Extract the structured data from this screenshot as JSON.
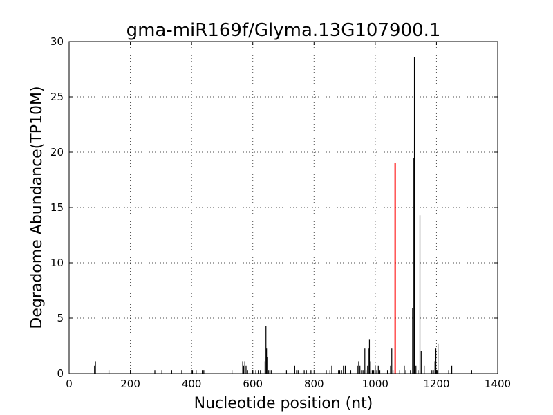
{
  "chart_data": {
    "type": "bar",
    "title": "gma-miR169f/Glyma.13G107900.1",
    "xlabel": "Nucleotide position (nt)",
    "ylabel": "Degradome Abundance(TP10M)",
    "xlim": [
      0,
      1400
    ],
    "ylim": [
      0,
      30
    ],
    "xticks": [
      0,
      200,
      400,
      600,
      800,
      1000,
      1200,
      1400
    ],
    "yticks": [
      0,
      5,
      10,
      15,
      20,
      25,
      30
    ],
    "grid": true,
    "colors": {
      "default": "#000000",
      "highlight": "#ff0000"
    },
    "series": [
      {
        "color": "#000000",
        "x": [
          83,
          86,
          130,
          280,
          303,
          335,
          368,
          403,
          415,
          435,
          440,
          532,
          567,
          570,
          574,
          578,
          583,
          600,
          610,
          618,
          625,
          640,
          643,
          645,
          648,
          652,
          660,
          710,
          737,
          743,
          748,
          768,
          775,
          790,
          840,
          852,
          858,
          880,
          884,
          890,
          896,
          902,
          920,
          942,
          946,
          950,
          955,
          960,
          966,
          970,
          975,
          978,
          981,
          985,
          990,
          995,
          1000,
          1005,
          1010,
          1015,
          1040,
          1050,
          1054,
          1058,
          1080,
          1095,
          1100,
          1115,
          1122,
          1125,
          1128,
          1133,
          1140,
          1146,
          1150,
          1160,
          1185,
          1190,
          1195,
          1198,
          1202,
          1205,
          1240,
          1250,
          1315
        ],
        "values": [
          0.7,
          1.1,
          0.3,
          0.3,
          0.3,
          0.3,
          0.3,
          0.3,
          0.3,
          0.3,
          0.3,
          0.3,
          1.1,
          0.7,
          1.1,
          0.7,
          0.3,
          0.3,
          0.3,
          0.3,
          0.3,
          1.1,
          4.3,
          2.3,
          1.5,
          0.3,
          0.3,
          0.3,
          0.7,
          0.3,
          0.3,
          0.3,
          0.3,
          0.3,
          0.3,
          0.3,
          0.7,
          0.3,
          0.3,
          0.3,
          0.7,
          0.7,
          0.3,
          0.7,
          1.1,
          0.7,
          0.3,
          0.3,
          2.3,
          0.3,
          0.7,
          2.3,
          3.1,
          1.1,
          0.3,
          0.3,
          0.7,
          0.3,
          0.7,
          0.3,
          0.3,
          0.7,
          2.3,
          0.3,
          0.3,
          0.7,
          0.3,
          0.3,
          5.9,
          19.5,
          28.6,
          0.7,
          0.3,
          14.3,
          2.0,
          0.7,
          0.3,
          0.3,
          1.1,
          2.3,
          0.3,
          2.7,
          0.3,
          0.7,
          0.3
        ]
      },
      {
        "color": "#ff0000",
        "x": [
          1065
        ],
        "values": [
          19.0
        ]
      }
    ]
  }
}
